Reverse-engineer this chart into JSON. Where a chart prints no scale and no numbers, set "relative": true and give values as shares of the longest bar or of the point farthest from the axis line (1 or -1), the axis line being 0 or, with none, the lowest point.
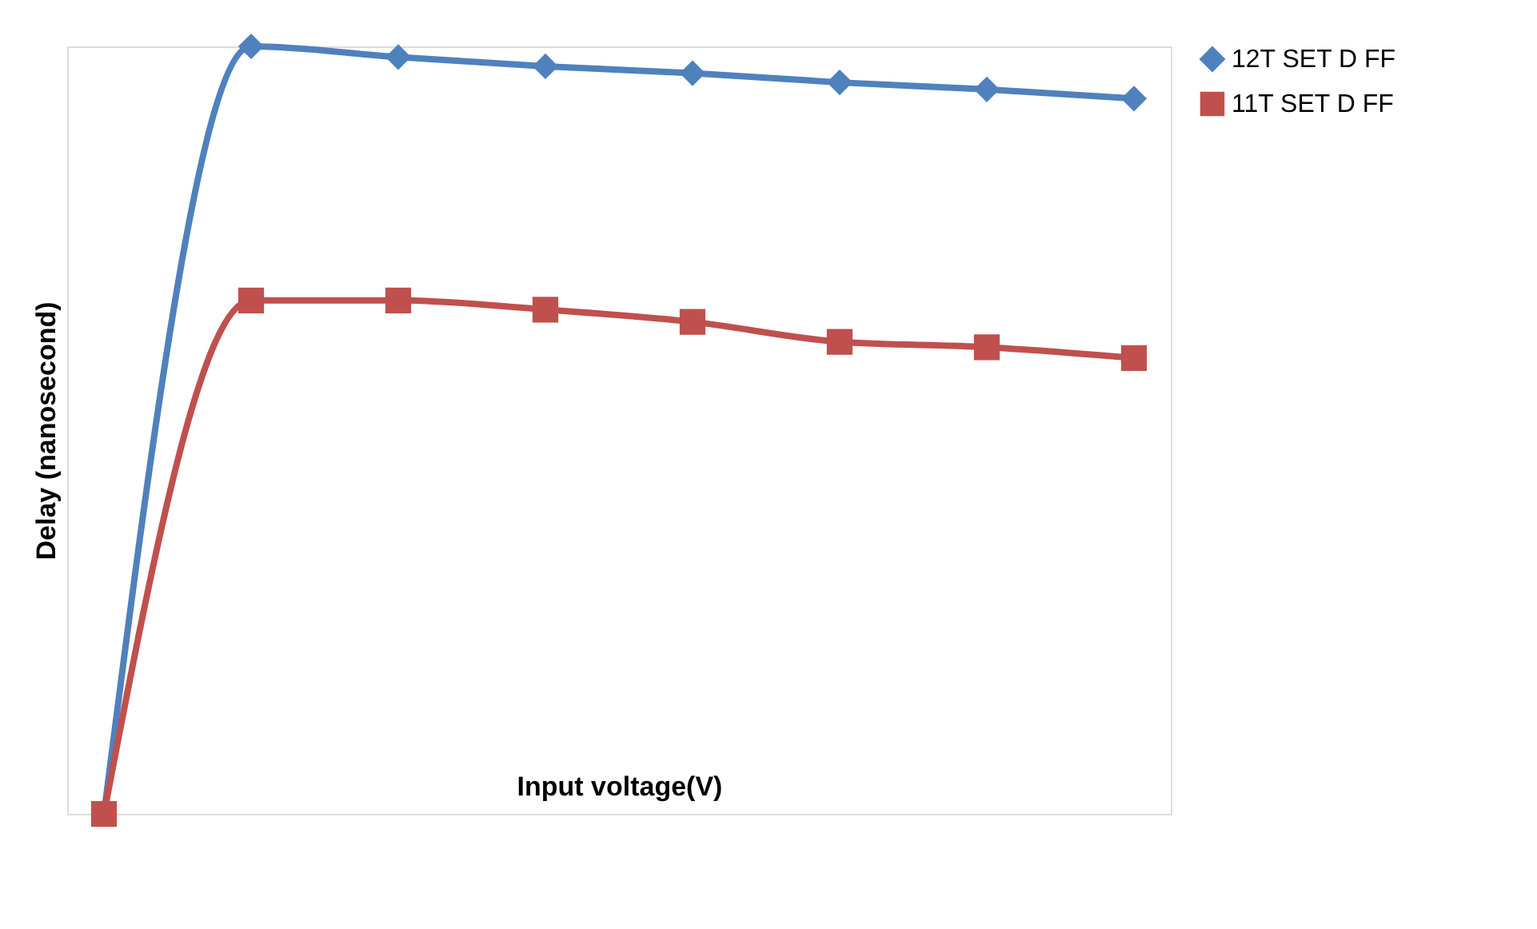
{
  "chart_data": {
    "type": "line",
    "relative": true,
    "xlabel": "Input voltage(V)",
    "ylabel": "Delay (nanosecond)",
    "categories": [
      null,
      null,
      null,
      null,
      null,
      null,
      null,
      null
    ],
    "series": [
      {
        "name": "12T SET D FF",
        "color": "#4f81bd",
        "marker": "diamond",
        "values": [
          0,
          1,
          0.986,
          0.974,
          0.965,
          0.953,
          0.944,
          0.932
        ]
      },
      {
        "name": "11T SET D FF",
        "color": "#c0504d",
        "marker": "square",
        "values": [
          0,
          0.669,
          0.669,
          0.657,
          0.641,
          0.615,
          0.608,
          0.594
        ]
      }
    ],
    "legend": "right",
    "grid": false
  }
}
